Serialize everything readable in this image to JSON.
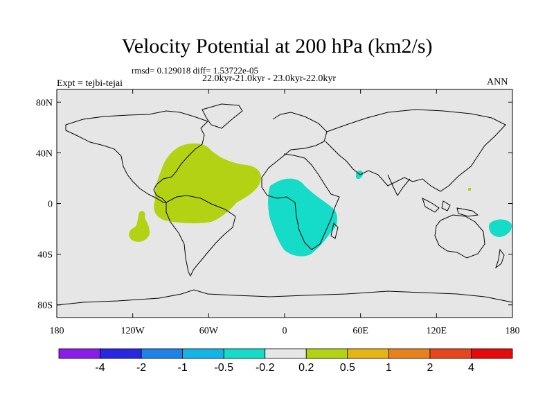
{
  "title": "Velocity Potential at 200 hPa (km2/s)",
  "stats": "rmsd= 0.129018 diff= 1.53722e-05",
  "period": "22.0kyr-21.0kyr - 23.0kyr-22.0kyr",
  "experiment": "Expt = tejbi-tejai",
  "season": "ANN",
  "map": {
    "background_color": "#e6e6e6",
    "lat_ticks": [
      "80N",
      "40N",
      "0",
      "40S",
      "80S"
    ],
    "lon_ticks": [
      "180",
      "120W",
      "60W",
      "0",
      "60E",
      "120E",
      "180"
    ]
  },
  "colorbar": {
    "colors": [
      "#8a1ee6",
      "#2828e0",
      "#1e82e6",
      "#14b4e6",
      "#14dcc8",
      "#e6e6e6",
      "#b4d214",
      "#e6b414",
      "#e6821e",
      "#e6461e",
      "#e60a0a"
    ],
    "labels": [
      "-4",
      "-2",
      "-1",
      "-0.5",
      "-0.2",
      "0.2",
      "0.5",
      "1",
      "2",
      "4"
    ]
  },
  "anomalies": [
    {
      "name": "positive-atlantic-americas",
      "color": "#b4d214"
    },
    {
      "name": "positive-east-pacific",
      "color": "#b4d214"
    },
    {
      "name": "negative-africa",
      "color": "#14dcc8"
    },
    {
      "name": "negative-arabia",
      "color": "#14dcc8"
    },
    {
      "name": "negative-southwest-pacific",
      "color": "#14dcc8"
    },
    {
      "name": "positive-west-pacific",
      "color": "#b4d214"
    }
  ]
}
